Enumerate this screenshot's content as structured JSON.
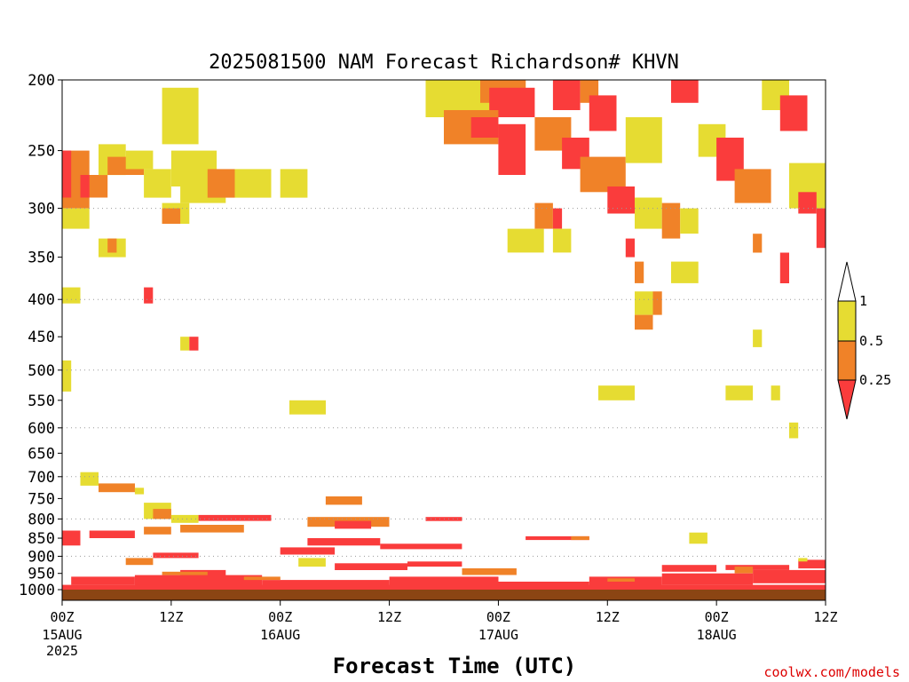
{
  "chart_data": {
    "type": "heatmap",
    "title": "2025081500 NAM Forecast Richardson# KHVN",
    "xlabel": "Forecast Time (UTC)",
    "ylabel": "",
    "credit": "coolwx.com/models",
    "x_range_hours": [
      0,
      84
    ],
    "y_range_hpa": [
      1000,
      200
    ],
    "y_scale": "pressure (log-like), 1000 at bottom, 200 at top",
    "yticks": [
      200,
      250,
      300,
      350,
      400,
      450,
      500,
      550,
      600,
      650,
      700,
      750,
      800,
      850,
      900,
      950,
      1000
    ],
    "dotted_gridlines_hpa": [
      300,
      400,
      500,
      600,
      700,
      800,
      900
    ],
    "xticks": [
      {
        "hour": 0,
        "label": "00Z",
        "date": "15AUG",
        "year": "2025"
      },
      {
        "hour": 12,
        "label": "12Z"
      },
      {
        "hour": 24,
        "label": "00Z",
        "date": "16AUG"
      },
      {
        "hour": 36,
        "label": "12Z"
      },
      {
        "hour": 48,
        "label": "00Z",
        "date": "17AUG"
      },
      {
        "hour": 60,
        "label": "12Z"
      },
      {
        "hour": 72,
        "label": "00Z",
        "date": "18AUG"
      },
      {
        "hour": 84,
        "label": "12Z"
      }
    ],
    "colorbar": {
      "levels": [
        {
          "label": "1",
          "range": [
            0.5,
            1
          ],
          "color": "#e6dc32"
        },
        {
          "label": "0.5",
          "range": [
            0.25,
            0.5
          ],
          "color": "#f08228"
        },
        {
          "label": "0.25",
          "range": [
            null,
            0.25
          ],
          "color": "#fa3c3c"
        }
      ],
      "over_color": "#ffffff",
      "under_color": "#fa3c3c"
    },
    "surface_color": "#8b4513",
    "cells": [
      {
        "h0": 0,
        "h1": 3,
        "p0": 250,
        "p1": 300,
        "c": "o"
      },
      {
        "h0": 0,
        "h1": 1,
        "p0": 250,
        "p1": 290,
        "c": "r"
      },
      {
        "h0": 2,
        "h1": 4,
        "p0": 270,
        "p1": 290,
        "c": "r"
      },
      {
        "h0": 3,
        "h1": 5,
        "p0": 270,
        "p1": 290,
        "c": "o"
      },
      {
        "h0": 4,
        "h1": 7,
        "p0": 245,
        "p1": 270,
        "c": "y"
      },
      {
        "h0": 5,
        "h1": 9,
        "p0": 255,
        "p1": 270,
        "c": "o"
      },
      {
        "h0": 7,
        "h1": 10,
        "p0": 250,
        "p1": 265,
        "c": "y"
      },
      {
        "h0": 9,
        "h1": 12,
        "p0": 265,
        "p1": 290,
        "c": "y"
      },
      {
        "h0": 11,
        "h1": 15,
        "p0": 205,
        "p1": 245,
        "c": "y"
      },
      {
        "h0": 12,
        "h1": 17,
        "p0": 250,
        "p1": 280,
        "c": "y"
      },
      {
        "h0": 13,
        "h1": 18,
        "p0": 275,
        "p1": 295,
        "c": "y"
      },
      {
        "h0": 16,
        "h1": 19,
        "p0": 265,
        "p1": 290,
        "c": "o"
      },
      {
        "h0": 19,
        "h1": 23,
        "p0": 265,
        "p1": 290,
        "c": "y"
      },
      {
        "h0": 24,
        "h1": 27,
        "p0": 265,
        "p1": 290,
        "c": "y"
      },
      {
        "h0": 0,
        "h1": 3,
        "p0": 300,
        "p1": 320,
        "c": "y"
      },
      {
        "h0": 11,
        "h1": 14,
        "p0": 295,
        "p1": 315,
        "c": "y"
      },
      {
        "h0": 11,
        "h1": 13,
        "p0": 300,
        "p1": 315,
        "c": "o"
      },
      {
        "h0": 4,
        "h1": 7,
        "p0": 330,
        "p1": 350,
        "c": "y"
      },
      {
        "h0": 5,
        "h1": 6,
        "p0": 330,
        "p1": 345,
        "c": "o"
      },
      {
        "h0": 0,
        "h1": 2,
        "p0": 385,
        "p1": 405,
        "c": "y"
      },
      {
        "h0": 9,
        "h1": 10,
        "p0": 385,
        "p1": 405,
        "c": "r"
      },
      {
        "h0": 13,
        "h1": 14,
        "p0": 450,
        "p1": 470,
        "c": "y"
      },
      {
        "h0": 14,
        "h1": 15,
        "p0": 450,
        "p1": 470,
        "c": "r"
      },
      {
        "h0": 0,
        "h1": 1,
        "p0": 485,
        "p1": 535,
        "c": "y"
      },
      {
        "h0": 25,
        "h1": 29,
        "p0": 550,
        "p1": 575,
        "c": "y"
      },
      {
        "h0": 40,
        "h1": 51,
        "p0": 200,
        "p1": 225,
        "c": "y"
      },
      {
        "h0": 46,
        "h1": 51,
        "p0": 200,
        "p1": 215,
        "c": "o"
      },
      {
        "h0": 47,
        "h1": 52,
        "p0": 205,
        "p1": 225,
        "c": "r"
      },
      {
        "h0": 42,
        "h1": 48,
        "p0": 220,
        "p1": 245,
        "c": "o"
      },
      {
        "h0": 45,
        "h1": 48,
        "p0": 225,
        "p1": 240,
        "c": "r"
      },
      {
        "h0": 48,
        "h1": 51,
        "p0": 230,
        "p1": 270,
        "c": "r"
      },
      {
        "h0": 54,
        "h1": 57,
        "p0": 200,
        "p1": 220,
        "c": "r"
      },
      {
        "h0": 57,
        "h1": 59,
        "p0": 200,
        "p1": 215,
        "c": "o"
      },
      {
        "h0": 58,
        "h1": 61,
        "p0": 210,
        "p1": 235,
        "c": "r"
      },
      {
        "h0": 52,
        "h1": 56,
        "p0": 225,
        "p1": 250,
        "c": "o"
      },
      {
        "h0": 55,
        "h1": 58,
        "p0": 240,
        "p1": 265,
        "c": "r"
      },
      {
        "h0": 57,
        "h1": 62,
        "p0": 255,
        "p1": 285,
        "c": "o"
      },
      {
        "h0": 62,
        "h1": 66,
        "p0": 225,
        "p1": 260,
        "c": "y"
      },
      {
        "h0": 60,
        "h1": 63,
        "p0": 280,
        "p1": 305,
        "c": "r"
      },
      {
        "h0": 63,
        "h1": 66,
        "p0": 290,
        "p1": 320,
        "c": "y"
      },
      {
        "h0": 67,
        "h1": 70,
        "p0": 200,
        "p1": 215,
        "c": "r"
      },
      {
        "h0": 70,
        "h1": 73,
        "p0": 230,
        "p1": 255,
        "c": "y"
      },
      {
        "h0": 72,
        "h1": 75,
        "p0": 240,
        "p1": 275,
        "c": "r"
      },
      {
        "h0": 74,
        "h1": 78,
        "p0": 265,
        "p1": 295,
        "c": "o"
      },
      {
        "h0": 77,
        "h1": 80,
        "p0": 200,
        "p1": 220,
        "c": "y"
      },
      {
        "h0": 79,
        "h1": 82,
        "p0": 210,
        "p1": 235,
        "c": "r"
      },
      {
        "h0": 80,
        "h1": 84,
        "p0": 260,
        "p1": 300,
        "c": "y"
      },
      {
        "h0": 81,
        "h1": 83,
        "p0": 285,
        "p1": 305,
        "c": "r"
      },
      {
        "h0": 83,
        "h1": 84,
        "p0": 300,
        "p1": 340,
        "c": "r"
      },
      {
        "h0": 52,
        "h1": 54,
        "p0": 295,
        "p1": 320,
        "c": "o"
      },
      {
        "h0": 54,
        "h1": 55,
        "p0": 300,
        "p1": 320,
        "c": "r"
      },
      {
        "h0": 66,
        "h1": 68,
        "p0": 295,
        "p1": 330,
        "c": "o"
      },
      {
        "h0": 68,
        "h1": 70,
        "p0": 300,
        "p1": 325,
        "c": "y"
      },
      {
        "h0": 49,
        "h1": 53,
        "p0": 320,
        "p1": 345,
        "c": "y"
      },
      {
        "h0": 54,
        "h1": 56,
        "p0": 320,
        "p1": 345,
        "c": "y"
      },
      {
        "h0": 62,
        "h1": 63,
        "p0": 330,
        "p1": 350,
        "c": "r"
      },
      {
        "h0": 67,
        "h1": 70,
        "p0": 355,
        "p1": 380,
        "c": "y"
      },
      {
        "h0": 63,
        "h1": 64,
        "p0": 355,
        "p1": 380,
        "c": "o"
      },
      {
        "h0": 63,
        "h1": 65,
        "p0": 390,
        "p1": 420,
        "c": "y"
      },
      {
        "h0": 65,
        "h1": 66,
        "p0": 390,
        "p1": 420,
        "c": "o"
      },
      {
        "h0": 63,
        "h1": 65,
        "p0": 420,
        "p1": 440,
        "c": "o"
      },
      {
        "h0": 79,
        "h1": 80,
        "p0": 345,
        "p1": 380,
        "c": "r"
      },
      {
        "h0": 76,
        "h1": 77,
        "p0": 325,
        "p1": 345,
        "c": "o"
      },
      {
        "h0": 76,
        "h1": 77,
        "p0": 440,
        "p1": 465,
        "c": "y"
      },
      {
        "h0": 59,
        "h1": 63,
        "p0": 525,
        "p1": 550,
        "c": "y"
      },
      {
        "h0": 73,
        "h1": 76,
        "p0": 525,
        "p1": 550,
        "c": "y"
      },
      {
        "h0": 78,
        "h1": 79,
        "p0": 525,
        "p1": 550,
        "c": "y"
      },
      {
        "h0": 80,
        "h1": 81,
        "p0": 590,
        "p1": 620,
        "c": "y"
      },
      {
        "h0": 2,
        "h1": 4,
        "p0": 690,
        "p1": 720,
        "c": "y"
      },
      {
        "h0": 4,
        "h1": 8,
        "p0": 715,
        "p1": 735,
        "c": "o"
      },
      {
        "h0": 8,
        "h1": 9,
        "p0": 725,
        "p1": 740,
        "c": "y"
      },
      {
        "h0": 9,
        "h1": 12,
        "p0": 760,
        "p1": 800,
        "c": "y"
      },
      {
        "h0": 10,
        "h1": 12,
        "p0": 775,
        "p1": 800,
        "c": "o"
      },
      {
        "h0": 12,
        "h1": 15,
        "p0": 790,
        "p1": 810,
        "c": "y"
      },
      {
        "h0": 15,
        "h1": 23,
        "p0": 790,
        "p1": 805,
        "c": "r"
      },
      {
        "h0": 29,
        "h1": 33,
        "p0": 745,
        "p1": 765,
        "c": "o"
      },
      {
        "h0": 27,
        "h1": 36,
        "p0": 795,
        "p1": 820,
        "c": "o"
      },
      {
        "h0": 30,
        "h1": 34,
        "p0": 805,
        "p1": 825,
        "c": "r"
      },
      {
        "h0": 40,
        "h1": 44,
        "p0": 795,
        "p1": 805,
        "c": "r"
      },
      {
        "h0": 51,
        "h1": 58,
        "p0": 845,
        "p1": 855,
        "c": "r"
      },
      {
        "h0": 56,
        "h1": 58,
        "p0": 845,
        "p1": 855,
        "c": "o"
      },
      {
        "h0": 69,
        "h1": 71,
        "p0": 835,
        "p1": 865,
        "c": "y"
      },
      {
        "h0": 0,
        "h1": 2,
        "p0": 830,
        "p1": 870,
        "c": "r"
      },
      {
        "h0": 3,
        "h1": 8,
        "p0": 830,
        "p1": 850,
        "c": "r"
      },
      {
        "h0": 9,
        "h1": 12,
        "p0": 820,
        "p1": 840,
        "c": "o"
      },
      {
        "h0": 13,
        "h1": 20,
        "p0": 815,
        "p1": 835,
        "c": "o"
      },
      {
        "h0": 27,
        "h1": 35,
        "p0": 850,
        "p1": 870,
        "c": "r"
      },
      {
        "h0": 35,
        "h1": 44,
        "p0": 865,
        "p1": 880,
        "c": "r"
      },
      {
        "h0": 24,
        "h1": 30,
        "p0": 875,
        "p1": 895,
        "c": "r"
      },
      {
        "h0": 10,
        "h1": 15,
        "p0": 890,
        "p1": 905,
        "c": "r"
      },
      {
        "h0": 7,
        "h1": 10,
        "p0": 905,
        "p1": 925,
        "c": "o"
      },
      {
        "h0": 26,
        "h1": 29,
        "p0": 905,
        "p1": 930,
        "c": "y"
      },
      {
        "h0": 13,
        "h1": 18,
        "p0": 940,
        "p1": 960,
        "c": "r"
      },
      {
        "h0": 30,
        "h1": 38,
        "p0": 920,
        "p1": 940,
        "c": "r"
      },
      {
        "h0": 38,
        "h1": 44,
        "p0": 915,
        "p1": 930,
        "c": "r"
      },
      {
        "h0": 44,
        "h1": 50,
        "p0": 935,
        "p1": 955,
        "c": "o"
      },
      {
        "h0": 66,
        "h1": 72,
        "p0": 925,
        "p1": 945,
        "c": "r"
      },
      {
        "h0": 73,
        "h1": 80,
        "p0": 925,
        "p1": 940,
        "c": "r"
      },
      {
        "h0": 81,
        "h1": 84,
        "p0": 910,
        "p1": 935,
        "c": "r"
      },
      {
        "h0": 81,
        "h1": 82,
        "p0": 905,
        "p1": 915,
        "c": "y"
      },
      {
        "h0": 74,
        "h1": 76,
        "p0": 930,
        "p1": 950,
        "c": "o"
      },
      {
        "h0": 1,
        "h1": 8,
        "p0": 960,
        "p1": 985,
        "c": "r"
      },
      {
        "h0": 8,
        "h1": 22,
        "p0": 955,
        "p1": 990,
        "c": "r"
      },
      {
        "h0": 22,
        "h1": 36,
        "p0": 970,
        "p1": 995,
        "c": "r"
      },
      {
        "h0": 36,
        "h1": 48,
        "p0": 960,
        "p1": 990,
        "c": "r"
      },
      {
        "h0": 48,
        "h1": 58,
        "p0": 975,
        "p1": 995,
        "c": "r"
      },
      {
        "h0": 58,
        "h1": 66,
        "p0": 960,
        "p1": 990,
        "c": "r"
      },
      {
        "h0": 66,
        "h1": 76,
        "p0": 950,
        "p1": 985,
        "c": "r"
      },
      {
        "h0": 76,
        "h1": 84,
        "p0": 940,
        "p1": 980,
        "c": "r"
      },
      {
        "h0": 0,
        "h1": 84,
        "p0": 985,
        "p1": 1000,
        "c": "r"
      },
      {
        "h0": 11,
        "h1": 16,
        "p0": 945,
        "p1": 955,
        "c": "o"
      },
      {
        "h0": 20,
        "h1": 24,
        "p0": 960,
        "p1": 970,
        "c": "o"
      },
      {
        "h0": 60,
        "h1": 63,
        "p0": 965,
        "p1": 975,
        "c": "o"
      }
    ]
  }
}
